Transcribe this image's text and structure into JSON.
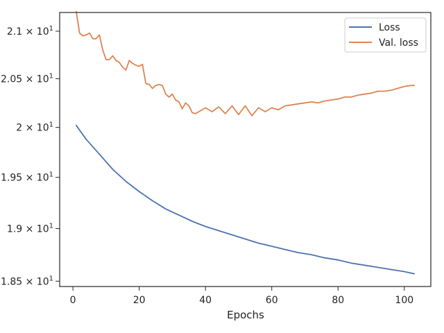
{
  "chart_data": {
    "type": "line",
    "title": "",
    "xlabel": "Epochs",
    "ylabel": "",
    "xlim": [
      -4,
      108
    ],
    "ylim": [
      18.45,
      21.2
    ],
    "y_scale": "log",
    "grid": false,
    "legend_position": "top-right",
    "x_ticks": [
      0,
      20,
      40,
      60,
      80,
      100
    ],
    "x_tick_labels": [
      "0",
      "20",
      "40",
      "60",
      "80",
      "100"
    ],
    "y_ticks": [
      {
        "value": 18.5,
        "mantissa": "1.85",
        "exponent": "1"
      },
      {
        "value": 19.0,
        "mantissa": "1.9",
        "exponent": "1"
      },
      {
        "value": 19.5,
        "mantissa": "1.95",
        "exponent": "1"
      },
      {
        "value": 20.0,
        "mantissa": "2",
        "exponent": "1"
      },
      {
        "value": 20.5,
        "mantissa": "2.05",
        "exponent": "1"
      },
      {
        "value": 21.0,
        "mantissa": "2.1",
        "exponent": "1"
      }
    ],
    "series": [
      {
        "name": "Loss",
        "color": "#4c72b0",
        "x": [
          1,
          4,
          8,
          12,
          16,
          20,
          24,
          28,
          32,
          36,
          40,
          44,
          48,
          52,
          56,
          60,
          64,
          68,
          72,
          76,
          80,
          84,
          88,
          92,
          96,
          100,
          103
        ],
        "y": [
          20.02,
          19.88,
          19.73,
          19.58,
          19.46,
          19.36,
          19.27,
          19.19,
          19.13,
          19.07,
          19.02,
          18.98,
          18.94,
          18.9,
          18.86,
          18.83,
          18.8,
          18.77,
          18.75,
          18.72,
          18.7,
          18.67,
          18.65,
          18.63,
          18.61,
          18.59,
          18.57
        ]
      },
      {
        "name": "Val. loss",
        "color": "#dd8452",
        "x": [
          1,
          2,
          3,
          4,
          5,
          6,
          7,
          8,
          9,
          10,
          11,
          12,
          13,
          14,
          15,
          16,
          17,
          18,
          19,
          20,
          21,
          22,
          23,
          24,
          25,
          26,
          27,
          28,
          29,
          30,
          31,
          32,
          33,
          34,
          35,
          36,
          37,
          38,
          40,
          42,
          44,
          46,
          48,
          50,
          52,
          54,
          56,
          58,
          60,
          62,
          64,
          66,
          68,
          70,
          72,
          74,
          76,
          78,
          80,
          82,
          84,
          86,
          88,
          90,
          92,
          94,
          96,
          98,
          100,
          102,
          103
        ],
        "y": [
          21.21,
          20.98,
          20.95,
          20.96,
          20.98,
          20.92,
          20.92,
          20.96,
          20.8,
          20.7,
          20.7,
          20.74,
          20.69,
          20.67,
          20.62,
          20.59,
          20.69,
          20.66,
          20.64,
          20.63,
          20.65,
          20.45,
          20.44,
          20.4,
          20.43,
          20.44,
          20.43,
          20.34,
          20.31,
          20.34,
          20.28,
          20.26,
          20.19,
          20.25,
          20.22,
          20.15,
          20.14,
          20.16,
          20.2,
          20.16,
          20.21,
          20.14,
          20.22,
          20.13,
          20.22,
          20.12,
          20.2,
          20.16,
          20.2,
          20.18,
          20.22,
          20.23,
          20.24,
          20.25,
          20.26,
          20.25,
          20.27,
          20.28,
          20.29,
          20.31,
          20.31,
          20.33,
          20.34,
          20.35,
          20.37,
          20.37,
          20.38,
          20.4,
          20.42,
          20.43,
          20.43
        ]
      }
    ]
  }
}
